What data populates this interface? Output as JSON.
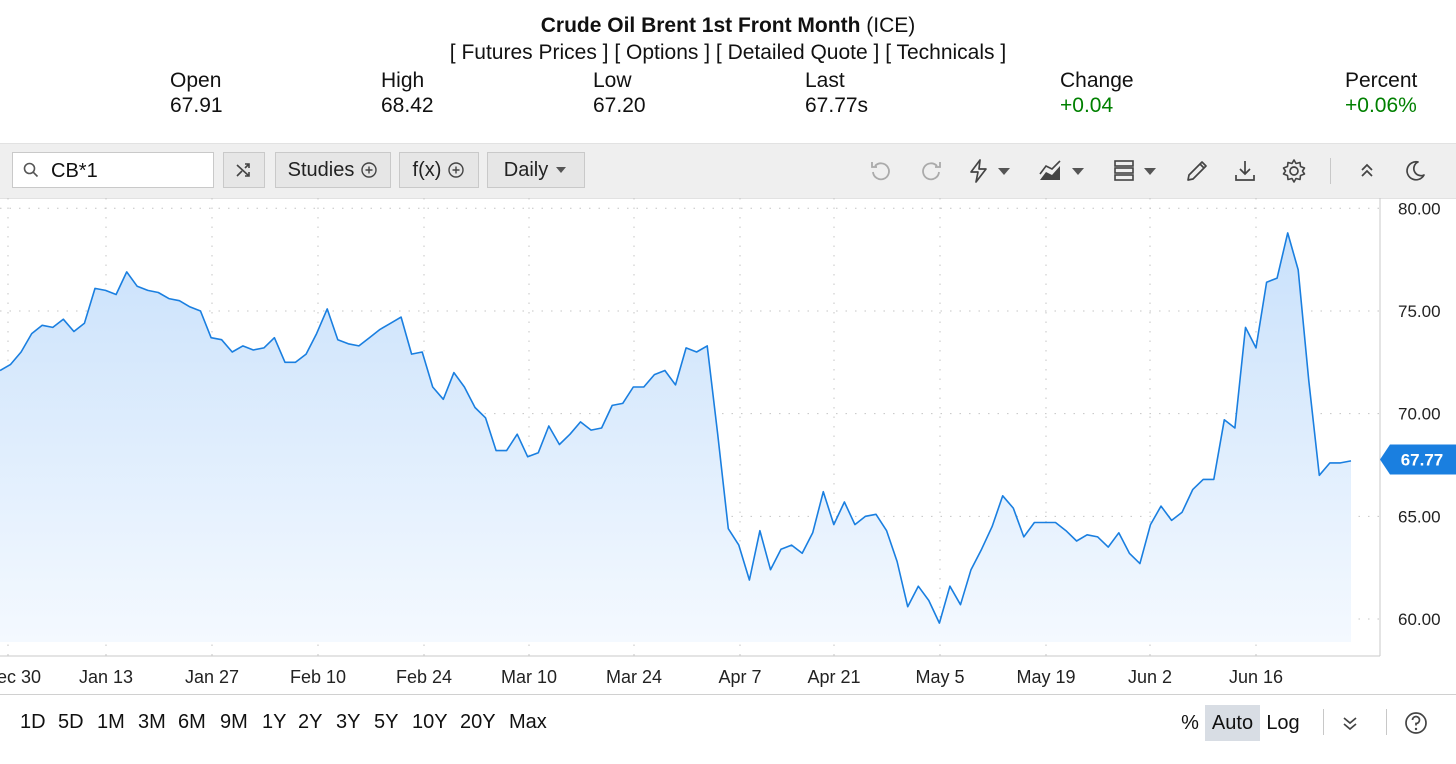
{
  "header": {
    "title_bold": "Crude Oil Brent 1st Front Month",
    "title_exchange": "(ICE)",
    "links": [
      "[ Futures Prices ]",
      "[ Options ]",
      "[ Detailed Quote ]",
      "[ Technicals ]"
    ]
  },
  "stats": {
    "open": {
      "label": "Open",
      "value": "67.91"
    },
    "high": {
      "label": "High",
      "value": "68.42"
    },
    "low": {
      "label": "Low",
      "value": "67.20"
    },
    "last": {
      "label": "Last",
      "value": "67.77s"
    },
    "change": {
      "label": "Change",
      "value": "+0.04"
    },
    "percent": {
      "label": "Percent",
      "value": "+0.06%"
    }
  },
  "toolbar": {
    "symbol_value": "CB*1",
    "studies_label": "Studies",
    "fx_label": "f(x)",
    "interval_label": "Daily"
  },
  "colors": {
    "line": "#1a7fe0",
    "area_top": "#c9e1fb",
    "area_bottom": "#f4f9ff",
    "badge": "#1a7fe0",
    "positive": "#008000"
  },
  "chart_data": {
    "type": "area",
    "title": "",
    "xlabel": "",
    "ylabel": "",
    "ylim": [
      58.2,
      80.5
    ],
    "y_ticks": [
      "80.00",
      "75.00",
      "70.00",
      "65.00",
      "60.00"
    ],
    "x_tick_labels": [
      "ec 30",
      "Jan 13",
      "Jan 27",
      "Feb 10",
      "Feb 24",
      "Mar 10",
      "Mar 24",
      "Apr 7",
      "Apr 21",
      "May 5",
      "May 19",
      "Jun 2",
      "Jun 16"
    ],
    "last_value_label": "67.77",
    "grid": true,
    "series": [
      {
        "values": [
          72.1,
          72.4,
          73.0,
          73.9,
          74.3,
          74.2,
          74.6,
          74.0,
          74.4,
          76.1,
          76.0,
          75.8,
          76.9,
          76.2,
          76.0,
          75.9,
          75.6,
          75.5,
          75.2,
          75.0,
          73.7,
          73.6,
          73.0,
          73.3,
          73.1,
          73.2,
          73.7,
          72.5,
          72.5,
          72.9,
          73.9,
          75.1,
          73.6,
          73.4,
          73.3,
          73.7,
          74.1,
          74.4,
          74.7,
          72.9,
          73.0,
          71.3,
          70.7,
          72.0,
          71.3,
          70.3,
          69.8,
          68.2,
          68.2,
          69.0,
          67.9,
          68.1,
          69.4,
          68.5,
          69.0,
          69.6,
          69.2,
          69.3,
          70.4,
          70.5,
          71.3,
          71.3,
          71.9,
          72.1,
          71.4,
          73.2,
          73.0,
          73.3,
          69.0,
          64.4,
          63.6,
          61.9,
          64.3,
          62.4,
          63.4,
          63.6,
          63.2,
          64.2,
          66.2,
          64.6,
          65.7,
          64.6,
          65.0,
          65.1,
          64.3,
          62.8,
          60.6,
          61.6,
          60.9,
          59.8,
          61.6,
          60.7,
          62.4,
          63.4,
          64.5,
          66.0,
          65.4,
          64.0,
          64.7,
          64.7,
          64.7,
          64.3,
          63.8,
          64.1,
          64.0,
          63.5,
          64.2,
          63.2,
          62.7,
          64.6,
          65.5,
          64.8,
          65.2,
          66.3,
          66.8,
          66.8,
          69.7,
          69.3,
          74.2,
          73.2,
          76.4,
          76.6,
          78.8,
          77.0,
          71.6,
          67.0,
          67.6,
          67.6,
          67.7
        ]
      }
    ]
  },
  "ranges": [
    "1D",
    "5D",
    "1M",
    "3M",
    "6M",
    "9M",
    "1Y",
    "2Y",
    "3Y",
    "5Y",
    "10Y",
    "20Y",
    "Max"
  ],
  "scale": {
    "percent_label": "%",
    "auto_label": "Auto",
    "log_label": "Log"
  }
}
